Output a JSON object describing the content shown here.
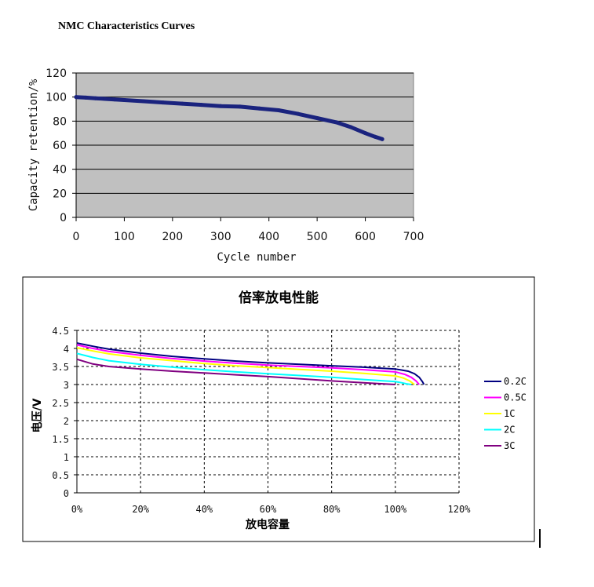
{
  "page_title": "NMC Characteristics Curves",
  "chart_data": [
    {
      "type": "line",
      "title": "",
      "xlabel": "Cycle number",
      "ylabel": "Capacity retention/%",
      "xlim": [
        0,
        700
      ],
      "ylim": [
        0,
        120
      ],
      "xticks": [
        0,
        100,
        200,
        300,
        400,
        500,
        600,
        700
      ],
      "yticks": [
        0,
        20,
        40,
        60,
        80,
        100,
        120
      ],
      "grid": "horizontal",
      "background": "#c0c0c0",
      "series": [
        {
          "color": "#1a237e",
          "x": [
            0,
            20,
            40,
            60,
            80,
            100,
            140,
            180,
            220,
            260,
            300,
            340,
            380,
            420,
            460,
            500,
            540,
            570,
            600,
            620,
            635
          ],
          "y": [
            100,
            99.5,
            99,
            98.5,
            98,
            97.5,
            96.5,
            95.5,
            94.5,
            93.5,
            92.5,
            92,
            90.5,
            89,
            86,
            82.5,
            79,
            75,
            70,
            67,
            65
          ]
        }
      ]
    },
    {
      "type": "line",
      "title": "倍率放电性能",
      "xlabel": "放电容量",
      "ylabel": "电压/V",
      "xlim": [
        0,
        120
      ],
      "ylim": [
        0,
        4.5
      ],
      "xticks": [
        "0%",
        "20%",
        "40%",
        "60%",
        "80%",
        "100%",
        "120%"
      ],
      "yticks": [
        "0",
        "0.5",
        "1",
        "1.5",
        "2",
        "2.5",
        "3",
        "3.5",
        "4",
        "4.5"
      ],
      "grid": "dashed",
      "legend": "right",
      "series": [
        {
          "name": "0.2C",
          "color": "#000080",
          "x": [
            0,
            5,
            10,
            20,
            30,
            40,
            50,
            60,
            70,
            80,
            90,
            100,
            104,
            106,
            107.5,
            108.5,
            109
          ],
          "y": [
            4.15,
            4.06,
            3.98,
            3.87,
            3.78,
            3.71,
            3.65,
            3.6,
            3.56,
            3.52,
            3.48,
            3.43,
            3.37,
            3.3,
            3.2,
            3.08,
            3.0
          ]
        },
        {
          "name": "0.5C",
          "color": "#ff00ff",
          "x": [
            0,
            5,
            10,
            20,
            30,
            40,
            50,
            60,
            70,
            80,
            90,
            100,
            103,
            105,
            106.5,
            107.5
          ],
          "y": [
            4.1,
            4.0,
            3.92,
            3.81,
            3.72,
            3.65,
            3.59,
            3.54,
            3.5,
            3.46,
            3.41,
            3.35,
            3.28,
            3.2,
            3.1,
            3.0
          ]
        },
        {
          "name": "1C",
          "color": "#ffff00",
          "x": [
            0,
            5,
            10,
            20,
            30,
            40,
            50,
            60,
            70,
            80,
            90,
            100,
            102.5,
            104.5,
            106
          ],
          "y": [
            4.02,
            3.93,
            3.85,
            3.74,
            3.66,
            3.58,
            3.52,
            3.47,
            3.42,
            3.37,
            3.31,
            3.24,
            3.18,
            3.1,
            3.0
          ]
        },
        {
          "name": "2C",
          "color": "#00ffff",
          "x": [
            0,
            5,
            10,
            20,
            30,
            40,
            50,
            60,
            70,
            80,
            90,
            100,
            102,
            103.5,
            105
          ],
          "y": [
            3.86,
            3.75,
            3.66,
            3.56,
            3.48,
            3.41,
            3.35,
            3.3,
            3.25,
            3.2,
            3.14,
            3.08,
            3.05,
            3.02,
            3.0
          ]
        },
        {
          "name": "3C",
          "color": "#800080",
          "x": [
            0,
            5,
            10,
            20,
            30,
            40,
            50,
            60,
            70,
            80,
            90,
            100
          ],
          "y": [
            3.7,
            3.57,
            3.5,
            3.43,
            3.37,
            3.32,
            3.27,
            3.22,
            3.16,
            3.1,
            3.05,
            3.0
          ]
        }
      ]
    }
  ]
}
